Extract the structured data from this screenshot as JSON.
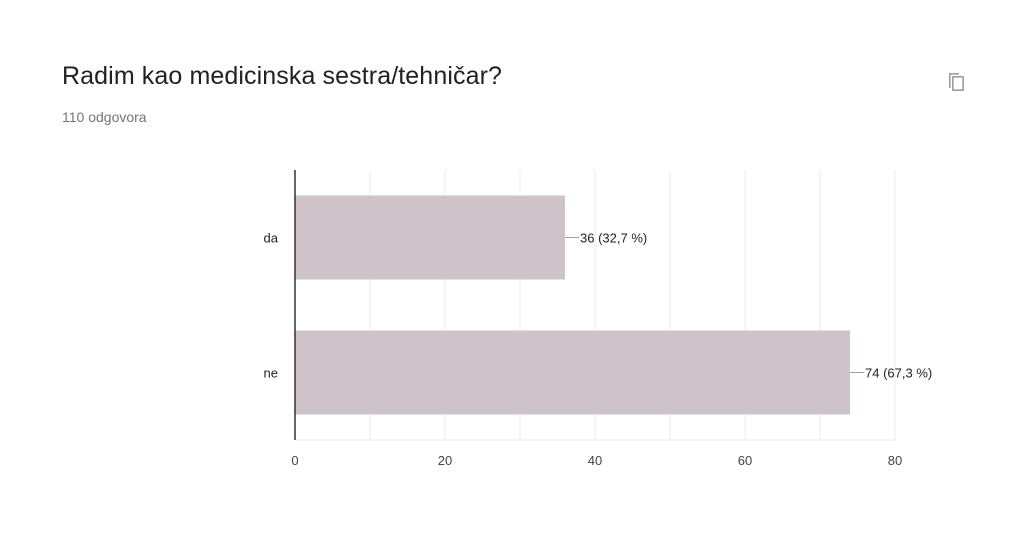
{
  "question": {
    "title": "Radim kao medicinska sestra/tehničar?",
    "response_count": "110 odgovora"
  },
  "toolbar": {
    "copy_icon": "copy-icon"
  },
  "colors": {
    "bar": "#cec3c9",
    "axis": "#333333",
    "grid": "#ebebeb",
    "leader": "#9e9e9e"
  },
  "chart_data": {
    "type": "bar",
    "orientation": "horizontal",
    "categories": [
      "da",
      "ne"
    ],
    "values": [
      36,
      74
    ],
    "data_labels": [
      "36 (32,7 %)",
      "74 (67,3 %)"
    ],
    "xlim": [
      0,
      80
    ],
    "x_ticks": [
      0,
      20,
      40,
      60,
      80
    ],
    "grid": true,
    "legend": "none"
  }
}
